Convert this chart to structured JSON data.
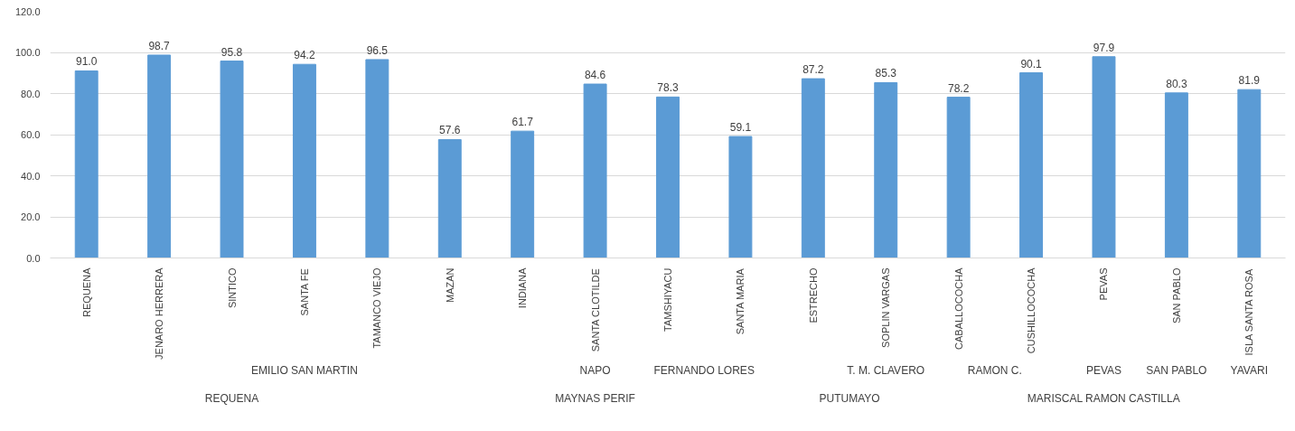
{
  "chart_data": {
    "type": "bar",
    "categories": [
      "REQUENA",
      "JENARO HERRERA",
      "SINTICO",
      "SANTA FE",
      "TAMANCO VIEJO",
      "MAZAN",
      "INDIANA",
      "SANTA CLOTILDE",
      "TAMSHIYACU",
      "SANTA MARIA",
      "ESTRECHO",
      "SOPLIN VARGAS",
      "CABALLOCOCHA",
      "CUSHILLOCOCHA",
      "PEVAS",
      "SAN PABLO",
      "ISLA SANTA ROSA"
    ],
    "values": [
      91.0,
      98.7,
      95.8,
      94.2,
      96.5,
      57.6,
      61.7,
      84.6,
      78.3,
      59.1,
      87.2,
      85.3,
      78.2,
      90.1,
      97.9,
      80.3,
      81.9
    ],
    "color": "#5b9bd5",
    "grid": "y",
    "value_labels": [
      "91.0",
      "98.7",
      "95.8",
      "94.2",
      "96.5",
      "57.6",
      "61.7",
      "84.6",
      "78.3",
      "59.1",
      "87.2",
      "85.3",
      "78.2",
      "90.1",
      "97.9",
      "80.3",
      "81.9"
    ],
    "ylim": [
      0,
      120
    ],
    "yticks": [
      {
        "value": 0,
        "label": "0.0"
      },
      {
        "value": 20,
        "label": "20.0"
      },
      {
        "value": 40,
        "label": "40.0"
      },
      {
        "value": 60,
        "label": "60.0"
      },
      {
        "value": 80,
        "label": "80.0"
      },
      {
        "value": 100,
        "label": "100.0"
      },
      {
        "value": 120,
        "label": "120.0"
      }
    ],
    "annotations": [
      "EMILIO SAN MARTIN",
      "NAPO",
      "FERNANDO LORES",
      "T. M. CLAVERO",
      "RAMON C.",
      "PEVAS",
      "SAN PABLO",
      "YAVARI",
      "REQUENA",
      "MAYNAS PERIF",
      "PUTUMAYO",
      "MARISCAL RAMON CASTILLA"
    ]
  }
}
